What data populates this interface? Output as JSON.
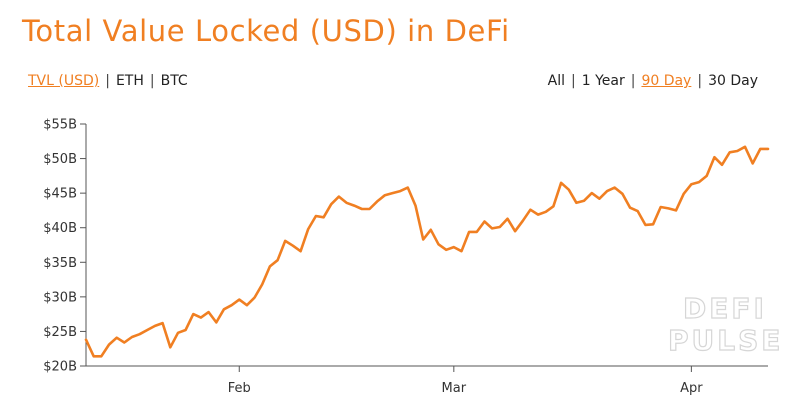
{
  "title": "Total Value Locked (USD) in DeFi",
  "metric_toggles": [
    {
      "label": "TVL (USD)",
      "active": true
    },
    {
      "label": "ETH",
      "active": false
    },
    {
      "label": "BTC",
      "active": false
    }
  ],
  "range_toggles": [
    {
      "label": "All",
      "active": false
    },
    {
      "label": "1 Year",
      "active": false
    },
    {
      "label": "90 Day",
      "active": true
    },
    {
      "label": "30 Day",
      "active": false
    }
  ],
  "watermark": [
    "DEFI",
    "PULSE"
  ],
  "colors": {
    "accent": "#f07f22",
    "line": "#f07f22",
    "axis": "#555555"
  },
  "chart_data": {
    "type": "line",
    "title": "Total Value Locked (USD) in DeFi",
    "xlabel": "",
    "ylabel": "",
    "ylim": [
      20,
      55
    ],
    "y_ticks": [
      {
        "value": 55,
        "label": "$55B"
      },
      {
        "value": 50,
        "label": "$50B"
      },
      {
        "value": 45,
        "label": "$45B"
      },
      {
        "value": 40,
        "label": "$40B"
      },
      {
        "value": 35,
        "label": "$35B"
      },
      {
        "value": 30,
        "label": "$30B"
      },
      {
        "value": 25,
        "label": "$25B"
      },
      {
        "value": 20,
        "label": "$20B"
      }
    ],
    "x_ticks": [
      {
        "index": 20,
        "label": "Feb"
      },
      {
        "index": 48,
        "label": "Mar"
      },
      {
        "index": 79,
        "label": "Apr"
      }
    ],
    "grid": false,
    "series": [
      {
        "values": [
          23.8,
          21.4,
          21.4,
          23.1,
          24.1,
          23.4,
          24.2,
          24.6,
          25.2,
          25.8,
          26.2,
          22.7,
          24.8,
          25.2,
          27.5,
          27.0,
          27.8,
          26.3,
          28.2,
          28.8,
          29.6,
          28.8,
          29.9,
          31.8,
          34.4,
          35.3,
          38.1,
          37.4,
          36.6,
          39.8,
          41.7,
          41.5,
          43.4,
          44.5,
          43.6,
          43.2,
          42.7,
          42.7,
          43.8,
          44.7,
          45.0,
          45.3,
          45.8,
          43.2,
          38.3,
          39.7,
          37.6,
          36.8,
          37.2,
          36.6,
          39.4,
          39.4,
          40.9,
          39.9,
          40.1,
          41.3,
          39.5,
          41.0,
          42.6,
          41.9,
          42.3,
          43.1,
          46.5,
          45.5,
          43.6,
          43.9,
          45.0,
          44.2,
          45.3,
          45.8,
          44.9,
          42.9,
          42.4,
          40.4,
          40.5,
          43.0,
          42.8,
          42.5,
          44.9,
          46.3,
          46.6,
          47.5,
          50.2,
          49.1,
          50.9,
          51.1,
          51.7,
          49.3,
          51.4,
          51.4
        ]
      }
    ]
  }
}
